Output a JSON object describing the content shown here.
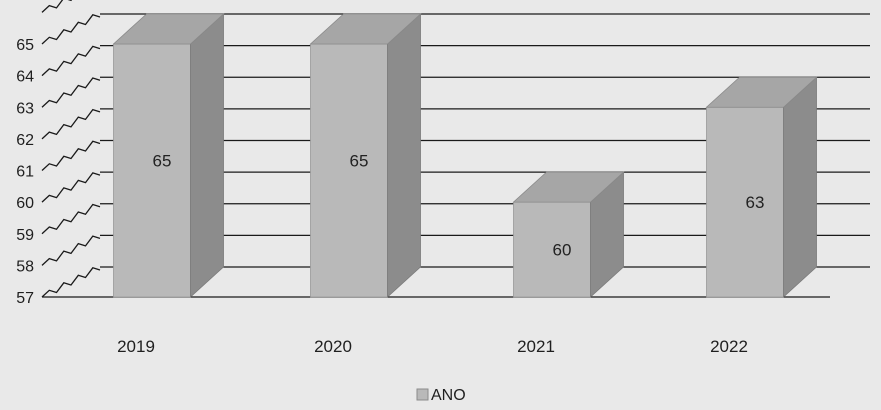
{
  "chart_data": {
    "type": "bar",
    "categories": [
      "2019",
      "2020",
      "2021",
      "2022"
    ],
    "series": [
      {
        "name": "ANO",
        "values": [
          65,
          65,
          60,
          63
        ]
      }
    ],
    "ylim": [
      57,
      65
    ],
    "yticks": [
      57,
      58,
      59,
      60,
      61,
      62,
      63,
      64,
      65
    ],
    "title": "",
    "xlabel": "",
    "ylabel": "",
    "grid": true,
    "legend_position": "bottom",
    "style": "3d-column",
    "colors": {
      "bar_front": "#b9b9b9",
      "bar_side": "#8c8c8c",
      "bar_top": "#a6a6a6",
      "grid": "#1a1a1a",
      "background": "#e9e9e9"
    }
  }
}
